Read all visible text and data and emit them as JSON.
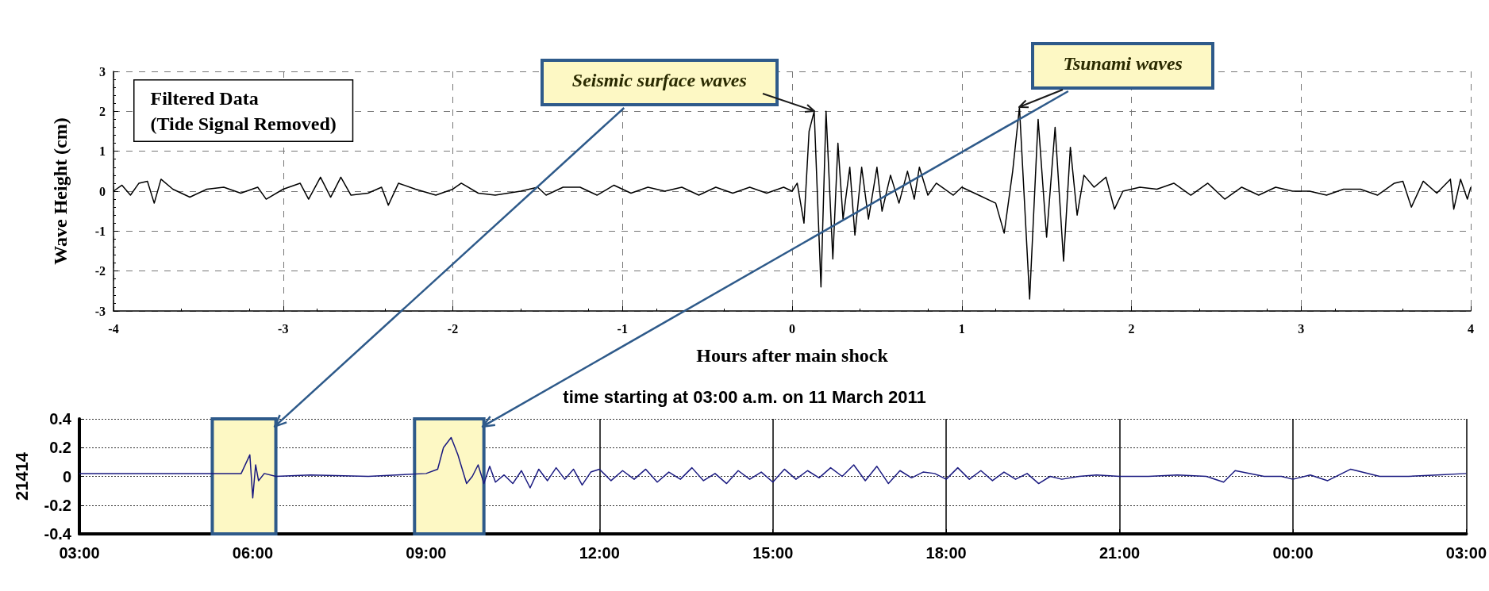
{
  "chart_data": [
    {
      "type": "line",
      "xlabel": "Hours after main shock",
      "ylabel": "Wave Height (cm)",
      "xlim": [
        -4,
        4
      ],
      "xticks": [
        -4,
        -3,
        -2,
        -1,
        0,
        1,
        2,
        3,
        4
      ],
      "ylim": [
        -3,
        3
      ],
      "yticks": [
        -3,
        -2,
        -1,
        0,
        1,
        2,
        3
      ],
      "grid": true,
      "series": [
        {
          "color": "#000000",
          "x": [
            -4,
            -3.95,
            -3.9,
            -3.85,
            -3.8,
            -3.76,
            -3.72,
            -3.65,
            -3.55,
            -3.45,
            -3.35,
            -3.25,
            -3.15,
            -3.1,
            -3,
            -2.9,
            -2.85,
            -2.78,
            -2.72,
            -2.66,
            -2.6,
            -2.5,
            -2.42,
            -2.38,
            -2.32,
            -2.22,
            -2.1,
            -2,
            -1.95,
            -1.85,
            -1.75,
            -1.6,
            -1.5,
            -1.45,
            -1.35,
            -1.25,
            -1.15,
            -1.05,
            -0.95,
            -0.85,
            -0.75,
            -0.65,
            -0.55,
            -0.45,
            -0.35,
            -0.25,
            -0.15,
            -0.05,
            0,
            0.03,
            0.07,
            0.1,
            0.13,
            0.17,
            0.2,
            0.24,
            0.27,
            0.3,
            0.34,
            0.37,
            0.41,
            0.45,
            0.5,
            0.53,
            0.58,
            0.63,
            0.68,
            0.72,
            0.75,
            0.8,
            0.85,
            0.95,
            1,
            1.1,
            1.2,
            1.25,
            1.3,
            1.34,
            1.4,
            1.45,
            1.5,
            1.55,
            1.6,
            1.64,
            1.68,
            1.72,
            1.78,
            1.85,
            1.9,
            1.95,
            2.05,
            2.15,
            2.25,
            2.35,
            2.45,
            2.55,
            2.65,
            2.75,
            2.85,
            2.95,
            3.05,
            3.15,
            3.25,
            3.35,
            3.45,
            3.55,
            3.6,
            3.65,
            3.72,
            3.8,
            3.88,
            3.9,
            3.94,
            3.98,
            4
          ],
          "values": [
            0,
            0.15,
            -0.1,
            0.2,
            0.25,
            -0.3,
            0.3,
            0.05,
            -0.15,
            0.05,
            0.1,
            -0.05,
            0.1,
            -0.2,
            0.05,
            0.2,
            -0.2,
            0.35,
            -0.15,
            0.35,
            -0.1,
            -0.05,
            0.1,
            -0.35,
            0.2,
            0.05,
            -0.1,
            0.05,
            0.2,
            -0.05,
            -0.1,
            0,
            0.1,
            -0.1,
            0.1,
            0.1,
            -0.1,
            0.15,
            -0.05,
            0.1,
            0,
            0.1,
            -0.1,
            0.1,
            -0.05,
            0.1,
            -0.05,
            0.1,
            0,
            0.2,
            -0.8,
            1.5,
            2,
            -2.4,
            2,
            -1.7,
            1.2,
            -0.7,
            0.6,
            -1.1,
            0.6,
            -0.7,
            0.6,
            -0.5,
            0.4,
            -0.3,
            0.5,
            -0.2,
            0.6,
            -0.1,
            0.2,
            -0.1,
            0.1,
            -0.1,
            -0.3,
            -1.05,
            0.5,
            2.1,
            -2.7,
            1.8,
            -1.15,
            1.6,
            -1.75,
            1.1,
            -0.6,
            0.4,
            0.1,
            0.35,
            -0.45,
            0,
            0.1,
            0.05,
            0.2,
            -0.1,
            0.2,
            -0.2,
            0.1,
            -0.1,
            0.1,
            0,
            0,
            -0.1,
            0.05,
            0.05,
            -0.1,
            0.2,
            0.25,
            -0.4,
            0.25,
            -0.05,
            0.3,
            -0.45,
            0.3,
            -0.2,
            0.1
          ]
        }
      ],
      "annotations": [
        "Filtered Data\n(Tide Signal Removed)",
        {
          "text": "Seismic surface waves",
          "x": 0.13,
          "y": 2
        },
        {
          "text": "Tsunami waves",
          "x": 1.34,
          "y": 2.1
        }
      ]
    },
    {
      "type": "line",
      "title": "time starting at 03:00 a.m. on 11 March 2011",
      "ylabel": "21414",
      "xlim": [
        "2011-03-11T03:00",
        "2011-03-12T03:00"
      ],
      "xticks": [
        {
          "value": "2011-03-11T03:00",
          "label": "03:00"
        },
        {
          "value": "2011-03-11T06:00",
          "label": "06:00"
        },
        {
          "value": "2011-03-11T09:00",
          "label": "09:00"
        },
        {
          "value": "2011-03-11T12:00",
          "label": "12:00"
        },
        {
          "value": "2011-03-11T15:00",
          "label": "15:00"
        },
        {
          "value": "2011-03-11T18:00",
          "label": "18:00"
        },
        {
          "value": "2011-03-11T21:00",
          "label": "21:00"
        },
        {
          "value": "2011-03-12T00:00",
          "label": "00:00"
        },
        {
          "value": "2011-03-12T03:00",
          "label": "03:00"
        }
      ],
      "ylim": [
        -0.4,
        0.4
      ],
      "yticks": [
        -0.4,
        -0.2,
        0,
        0.2,
        0.4
      ],
      "grid": true,
      "bands": [
        {
          "axis": "x",
          "from": "2011-03-11T05:18",
          "to": "2011-03-11T06:24",
          "color": "#fdf8c4"
        },
        {
          "axis": "x",
          "from": "2011-03-11T08:48",
          "to": "2011-03-11T10:00",
          "color": "#fdf8c4"
        }
      ],
      "series": [
        {
          "color": "#1a1a80",
          "x": [
            "2011-03-11T03:00",
            "2011-03-11T05:48",
            "2011-03-11T05:57",
            "2011-03-11T06:00",
            "2011-03-11T06:03",
            "2011-03-11T06:06",
            "2011-03-11T06:12",
            "2011-03-11T06:24",
            "2011-03-11T07:00",
            "2011-03-11T08:00",
            "2011-03-11T09:00",
            "2011-03-11T09:12",
            "2011-03-11T09:18",
            "2011-03-11T09:26",
            "2011-03-11T09:33",
            "2011-03-11T09:42",
            "2011-03-11T09:48",
            "2011-03-11T09:54",
            "2011-03-11T10:00",
            "2011-03-11T10:06",
            "2011-03-11T10:12",
            "2011-03-11T10:21",
            "2011-03-11T10:30",
            "2011-03-11T10:39",
            "2011-03-11T10:48",
            "2011-03-11T10:57",
            "2011-03-11T11:06",
            "2011-03-11T11:15",
            "2011-03-11T11:24",
            "2011-03-11T11:33",
            "2011-03-11T11:42",
            "2011-03-11T11:51",
            "2011-03-11T12:00",
            "2011-03-11T12:12",
            "2011-03-11T12:24",
            "2011-03-11T12:36",
            "2011-03-11T12:48",
            "2011-03-11T13:00",
            "2011-03-11T13:12",
            "2011-03-11T13:24",
            "2011-03-11T13:36",
            "2011-03-11T13:48",
            "2011-03-11T14:00",
            "2011-03-11T14:12",
            "2011-03-11T14:24",
            "2011-03-11T14:36",
            "2011-03-11T14:48",
            "2011-03-11T15:00",
            "2011-03-11T15:12",
            "2011-03-11T15:24",
            "2011-03-11T15:36",
            "2011-03-11T15:48",
            "2011-03-11T16:00",
            "2011-03-11T16:12",
            "2011-03-11T16:24",
            "2011-03-11T16:36",
            "2011-03-11T16:48",
            "2011-03-11T17:00",
            "2011-03-11T17:12",
            "2011-03-11T17:24",
            "2011-03-11T17:36",
            "2011-03-11T17:48",
            "2011-03-11T18:00",
            "2011-03-11T18:12",
            "2011-03-11T18:24",
            "2011-03-11T18:36",
            "2011-03-11T18:48",
            "2011-03-11T19:00",
            "2011-03-11T19:12",
            "2011-03-11T19:24",
            "2011-03-11T19:36",
            "2011-03-11T19:48",
            "2011-03-11T20:00",
            "2011-03-11T20:18",
            "2011-03-11T20:36",
            "2011-03-11T21:00",
            "2011-03-11T21:30",
            "2011-03-11T22:00",
            "2011-03-11T22:30",
            "2011-03-11T22:48",
            "2011-03-11T23:00",
            "2011-03-11T23:30",
            "2011-03-11T23:48",
            "2011-03-12T00:00",
            "2011-03-12T00:18",
            "2011-03-12T00:36",
            "2011-03-12T01:00",
            "2011-03-12T01:30",
            "2011-03-12T02:00",
            "2011-03-12T02:30",
            "2011-03-12T03:00"
          ],
          "values": [
            0.02,
            0.02,
            0.15,
            -0.15,
            0.08,
            -0.03,
            0.02,
            0.0,
            0.01,
            0.0,
            0.02,
            0.05,
            0.2,
            0.27,
            0.15,
            -0.05,
            0.0,
            0.08,
            -0.05,
            0.07,
            -0.04,
            0.01,
            -0.05,
            0.04,
            -0.08,
            0.05,
            -0.03,
            0.06,
            -0.02,
            0.05,
            -0.06,
            0.03,
            0.05,
            -0.03,
            0.04,
            -0.02,
            0.05,
            -0.04,
            0.03,
            -0.02,
            0.06,
            -0.03,
            0.02,
            -0.05,
            0.04,
            -0.02,
            0.03,
            -0.04,
            0.05,
            -0.02,
            0.04,
            -0.01,
            0.06,
            0.0,
            0.08,
            -0.03,
            0.07,
            -0.05,
            0.04,
            -0.01,
            0.03,
            0.02,
            -0.02,
            0.06,
            -0.02,
            0.04,
            -0.03,
            0.03,
            -0.02,
            0.02,
            -0.05,
            0.0,
            -0.02,
            0.0,
            0.01,
            0.0,
            0.0,
            0.01,
            0.0,
            -0.04,
            0.04,
            0.0,
            0.0,
            -0.02,
            0.01,
            -0.03,
            0.05,
            0.0,
            0.0,
            0.01,
            0.02
          ]
        }
      ]
    }
  ]
}
